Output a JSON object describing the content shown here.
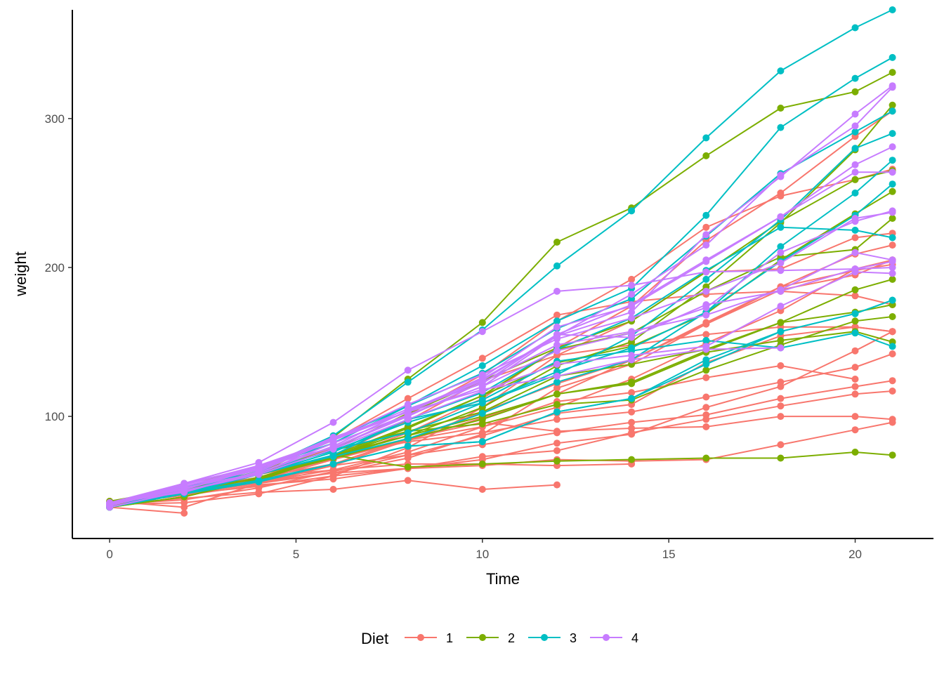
{
  "chart_data": {
    "type": "line",
    "title": "",
    "xlabel": "Time",
    "ylabel": "weight",
    "xlim": [
      -1,
      22.1
    ],
    "ylim": [
      18,
      373
    ],
    "x_ticks": [
      {
        "value": 0,
        "label": "0"
      },
      {
        "value": 5,
        "label": "5"
      },
      {
        "value": 10,
        "label": "10"
      },
      {
        "value": 15,
        "label": "15"
      },
      {
        "value": 20,
        "label": "20"
      }
    ],
    "y_ticks": [
      {
        "value": 100,
        "label": "100"
      },
      {
        "value": 200,
        "label": "200"
      },
      {
        "value": 300,
        "label": "300"
      }
    ],
    "grid": false,
    "legend": {
      "title": "Diet",
      "placement": "bottom",
      "entries": [
        {
          "label": "1",
          "color": "#F8766D"
        },
        {
          "label": "2",
          "color": "#7CAE00"
        },
        {
          "label": "3",
          "color": "#00BFC4"
        },
        {
          "label": "4",
          "color": "#C77CFF"
        }
      ]
    },
    "x": [
      0,
      2,
      4,
      6,
      8,
      10,
      12,
      14,
      16,
      18,
      20,
      21
    ],
    "series": [
      {
        "group": "1",
        "color": "#F8766D",
        "values": [
          42,
          51,
          59,
          64,
          76,
          93,
          106,
          125,
          149,
          171,
          199,
          205
        ]
      },
      {
        "group": "1",
        "color": "#F8766D",
        "values": [
          40,
          49,
          58,
          72,
          84,
          103,
          122,
          138,
          162,
          187,
          209,
          215
        ]
      },
      {
        "group": "1",
        "color": "#F8766D",
        "values": [
          43,
          39,
          55,
          67,
          84,
          99,
          115,
          138,
          163,
          187,
          198,
          202
        ]
      },
      {
        "group": "1",
        "color": "#F8766D",
        "values": [
          42,
          49,
          56,
          67,
          74,
          87,
          102,
          108,
          136,
          154,
          160,
          157
        ]
      },
      {
        "group": "1",
        "color": "#F8766D",
        "values": [
          41,
          42,
          48,
          60,
          79,
          106,
          141,
          164,
          197,
          199,
          220,
          223
        ]
      },
      {
        "group": "1",
        "color": "#F8766D",
        "values": [
          41,
          49,
          59,
          74,
          97,
          124,
          141,
          148,
          155,
          160,
          160,
          157
        ]
      },
      {
        "group": "1",
        "color": "#F8766D",
        "values": [
          41,
          49,
          57,
          71,
          89,
          112,
          146,
          174,
          218,
          250,
          288,
          305
        ]
      },
      {
        "group": "1",
        "color": "#F8766D",
        "values": [
          42,
          50,
          61,
          71,
          84,
          93,
          110,
          116,
          126,
          134,
          125,
          null
        ]
      },
      {
        "group": "1",
        "color": "#F8766D",
        "values": [
          42,
          51,
          59,
          68,
          85,
          96,
          90,
          92,
          93,
          100,
          100,
          98
        ]
      },
      {
        "group": "1",
        "color": "#F8766D",
        "values": [
          41,
          44,
          52,
          63,
          74,
          81,
          89,
          96,
          101,
          112,
          120,
          124
        ]
      },
      {
        "group": "1",
        "color": "#F8766D",
        "values": [
          43,
          51,
          63,
          84,
          112,
          139,
          168,
          177,
          182,
          184,
          181,
          175
        ]
      },
      {
        "group": "1",
        "color": "#F8766D",
        "values": [
          41,
          49,
          56,
          62,
          72,
          88,
          119,
          135,
          162,
          185,
          195,
          205
        ]
      },
      {
        "group": "1",
        "color": "#F8766D",
        "values": [
          41,
          48,
          53,
          60,
          65,
          67,
          71,
          70,
          71,
          81,
          91,
          96
        ]
      },
      {
        "group": "1",
        "color": "#F8766D",
        "values": [
          41,
          49,
          62,
          79,
          101,
          128,
          164,
          192,
          227,
          248,
          259,
          266
        ]
      },
      {
        "group": "1",
        "color": "#F8766D",
        "values": [
          41,
          49,
          56,
          64,
          68,
          68,
          67,
          68,
          null,
          null,
          null,
          null
        ]
      },
      {
        "group": "1",
        "color": "#F8766D",
        "values": [
          41,
          45,
          49,
          51,
          57,
          51,
          54,
          null,
          null,
          null,
          null,
          null
        ]
      },
      {
        "group": "1",
        "color": "#F8766D",
        "values": [
          42,
          51,
          61,
          72,
          83,
          89,
          98,
          103,
          113,
          123,
          133,
          142
        ]
      },
      {
        "group": "1",
        "color": "#F8766D",
        "values": [
          39,
          35,
          null,
          null,
          null,
          null,
          null,
          null,
          null,
          null,
          null,
          null
        ]
      },
      {
        "group": "1",
        "color": "#F8766D",
        "values": [
          43,
          48,
          55,
          62,
          65,
          71,
          82,
          88,
          106,
          120,
          144,
          157
        ]
      },
      {
        "group": "1",
        "color": "#F8766D",
        "values": [
          41,
          47,
          54,
          58,
          65,
          73,
          77,
          89,
          98,
          107,
          115,
          117
        ]
      },
      {
        "group": "2",
        "color": "#7CAE00",
        "values": [
          40,
          50,
          62,
          86,
          125,
          163,
          217,
          240,
          275,
          307,
          318,
          331
        ]
      },
      {
        "group": "2",
        "color": "#7CAE00",
        "values": [
          41,
          55,
          64,
          77,
          90,
          95,
          108,
          111,
          131,
          148,
          164,
          167
        ]
      },
      {
        "group": "2",
        "color": "#7CAE00",
        "values": [
          43,
          52,
          61,
          73,
          90,
          103,
          127,
          135,
          145,
          163,
          170,
          175
        ]
      },
      {
        "group": "2",
        "color": "#7CAE00",
        "values": [
          42,
          52,
          58,
          74,
          66,
          68,
          70,
          71,
          72,
          72,
          76,
          74
        ]
      },
      {
        "group": "2",
        "color": "#7CAE00",
        "values": [
          40,
          49,
          62,
          78,
          102,
          124,
          146,
          164,
          197,
          231,
          259,
          265
        ]
      },
      {
        "group": "2",
        "color": "#7CAE00",
        "values": [
          42,
          48,
          57,
          74,
          93,
          114,
          136,
          147,
          169,
          205,
          236,
          251
        ]
      },
      {
        "group": "2",
        "color": "#7CAE00",
        "values": [
          39,
          46,
          58,
          73,
          87,
          100,
          115,
          123,
          144,
          163,
          185,
          192
        ]
      },
      {
        "group": "2",
        "color": "#7CAE00",
        "values": [
          39,
          46,
          58,
          73,
          92,
          114,
          145,
          156,
          184,
          207,
          212,
          233
        ]
      },
      {
        "group": "2",
        "color": "#7CAE00",
        "values": [
          39,
          48,
          59,
          74,
          87,
          106,
          134,
          150,
          187,
          230,
          279,
          309
        ]
      },
      {
        "group": "2",
        "color": "#7CAE00",
        "values": [
          42,
          48,
          59,
          72,
          85,
          98,
          115,
          122,
          143,
          151,
          157,
          150
        ]
      },
      {
        "group": "3",
        "color": "#00BFC4",
        "values": [
          42,
          53,
          62,
          73,
          85,
          102,
          123,
          138,
          170,
          204,
          235,
          256
        ]
      },
      {
        "group": "3",
        "color": "#00BFC4",
        "values": [
          41,
          49,
          65,
          82,
          107,
          129,
          159,
          179,
          221,
          263,
          291,
          305
        ]
      },
      {
        "group": "3",
        "color": "#00BFC4",
        "values": [
          39,
          50,
          63,
          77,
          96,
          111,
          137,
          144,
          151,
          146,
          156,
          147
        ]
      },
      {
        "group": "3",
        "color": "#00BFC4",
        "values": [
          41,
          49,
          63,
          85,
          107,
          134,
          164,
          186,
          235,
          294,
          327,
          341
        ]
      },
      {
        "group": "3",
        "color": "#00BFC4",
        "values": [
          41,
          53,
          64,
          87,
          123,
          158,
          201,
          238,
          287,
          332,
          361,
          373
        ]
      },
      {
        "group": "3",
        "color": "#00BFC4",
        "values": [
          39,
          48,
          61,
          76,
          98,
          116,
          145,
          166,
          198,
          227,
          225,
          220
        ]
      },
      {
        "group": "3",
        "color": "#00BFC4",
        "values": [
          39,
          49,
          57,
          68,
          80,
          83,
          103,
          112,
          135,
          157,
          169,
          178
        ]
      },
      {
        "group": "3",
        "color": "#00BFC4",
        "values": [
          41,
          48,
          56,
          68,
          80,
          83,
          103,
          112,
          138,
          157,
          169,
          178
        ]
      },
      {
        "group": "3",
        "color": "#00BFC4",
        "values": [
          41,
          49,
          61,
          74,
          98,
          109,
          128,
          154,
          192,
          232,
          280,
          290
        ]
      },
      {
        "group": "3",
        "color": "#00BFC4",
        "values": [
          42,
          50,
          61,
          78,
          89,
          109,
          130,
          146,
          170,
          214,
          250,
          272
        ]
      },
      {
        "group": "4",
        "color": "#C77CFF",
        "values": [
          41,
          55,
          66,
          79,
          101,
          120,
          154,
          182,
          215,
          262,
          295,
          321
        ]
      },
      {
        "group": "4",
        "color": "#C77CFF",
        "values": [
          42,
          51,
          66,
          85,
          103,
          124,
          155,
          153,
          175,
          184,
          199,
          204
        ]
      },
      {
        "group": "4",
        "color": "#C77CFF",
        "values": [
          42,
          49,
          63,
          84,
          103,
          126,
          160,
          174,
          204,
          234,
          269,
          281
        ]
      },
      {
        "group": "4",
        "color": "#C77CFF",
        "values": [
          42,
          55,
          69,
          96,
          131,
          157,
          184,
          188,
          197,
          198,
          199,
          200
        ]
      },
      {
        "group": "4",
        "color": "#C77CFF",
        "values": [
          42,
          51,
          65,
          86,
          103,
          118,
          127,
          138,
          145,
          146,
          null,
          null
        ]
      },
      {
        "group": "4",
        "color": "#C77CFF",
        "values": [
          41,
          50,
          61,
          78,
          98,
          117,
          135,
          141,
          147,
          174,
          197,
          196
        ]
      },
      {
        "group": "4",
        "color": "#C77CFF",
        "values": [
          40,
          52,
          62,
          82,
          101,
          120,
          144,
          156,
          173,
          210,
          231,
          238
        ]
      },
      {
        "group": "4",
        "color": "#C77CFF",
        "values": [
          41,
          53,
          66,
          79,
          100,
          123,
          148,
          157,
          168,
          185,
          210,
          205
        ]
      },
      {
        "group": "4",
        "color": "#C77CFF",
        "values": [
          39,
          50,
          62,
          80,
          104,
          125,
          154,
          170,
          222,
          261,
          303,
          322
        ]
      },
      {
        "group": "4",
        "color": "#C77CFF",
        "values": [
          40,
          53,
          64,
          85,
          108,
          128,
          152,
          166,
          184,
          203,
          233,
          237
        ]
      },
      {
        "group": "4",
        "color": "#C77CFF",
        "values": [
          41,
          54,
          67,
          84,
          105,
          122,
          155,
          175,
          205,
          234,
          264,
          264
        ]
      }
    ]
  }
}
